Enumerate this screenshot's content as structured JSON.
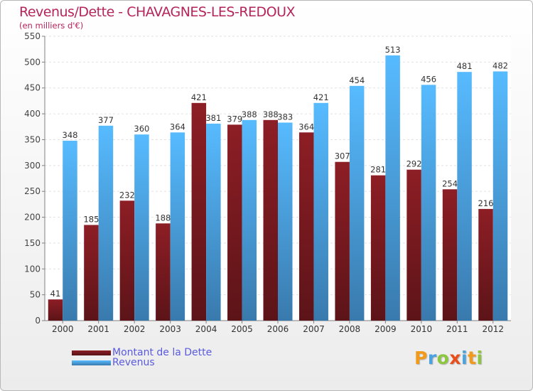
{
  "chart_data": {
    "type": "bar",
    "title": "Revenus/Dette - CHAVAGNES-LES-REDOUX",
    "subtitle": "(en milliers d'€)",
    "categories": [
      "2000",
      "2001",
      "2002",
      "2003",
      "2004",
      "2005",
      "2006",
      "2007",
      "2008",
      "2009",
      "2010",
      "2011",
      "2012"
    ],
    "series": [
      {
        "name": "Montant de la Dette",
        "color": "#7b1a20",
        "values": [
          41,
          185,
          232,
          188,
          421,
          379,
          388,
          364,
          307,
          281,
          292,
          254,
          216
        ]
      },
      {
        "name": "Revenus",
        "color": "#4ca3e6",
        "values": [
          348,
          377,
          360,
          364,
          381,
          388,
          383,
          421,
          454,
          513,
          456,
          481,
          482
        ]
      }
    ],
    "ylim": [
      0,
      550
    ],
    "yticks": [
      0,
      50,
      100,
      150,
      200,
      250,
      300,
      350,
      400,
      450,
      500,
      550
    ],
    "grid": true,
    "legend_position": "bottom-left"
  },
  "logo": {
    "letters": [
      "P",
      "r",
      "o",
      "x",
      "i",
      "t",
      "i"
    ],
    "colors": [
      "#f29a1a",
      "#4aa3df",
      "#8dc63f",
      "#e94e1b",
      "#4aa3df",
      "#f29a1a",
      "#8dc63f"
    ]
  }
}
